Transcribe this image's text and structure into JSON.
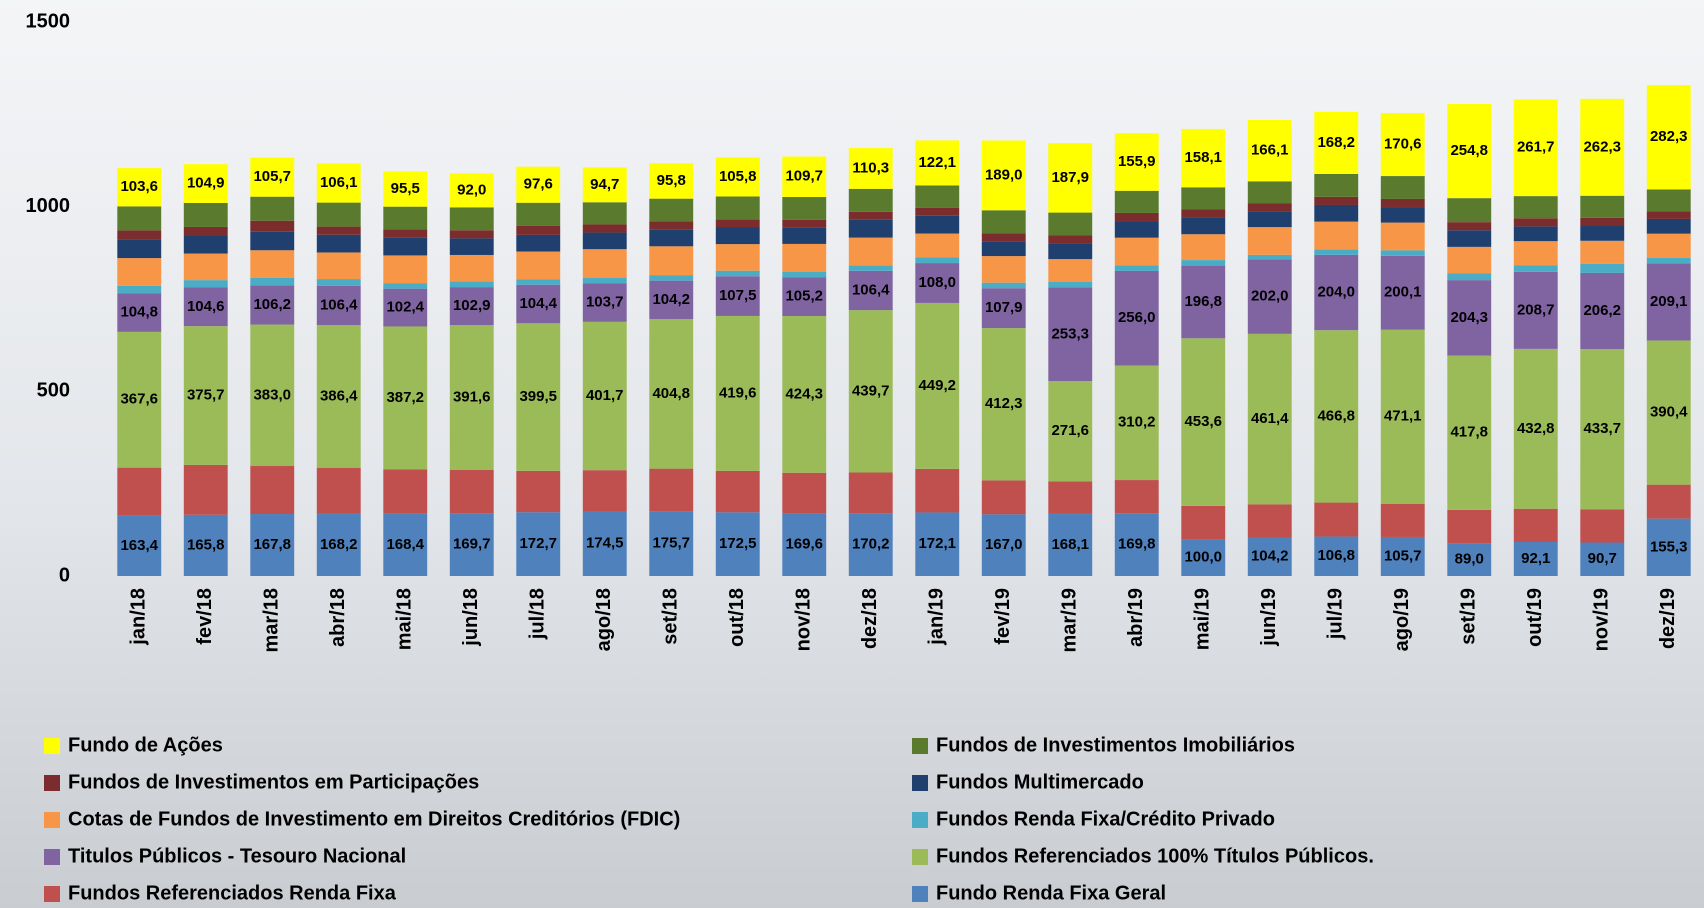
{
  "chart_data": {
    "type": "bar",
    "stacked": true,
    "categories": [
      "jan/18",
      "fev/18",
      "mar/18",
      "abr/18",
      "mai/18",
      "jun/18",
      "jul/18",
      "ago/18",
      "set/18",
      "out/18",
      "nov/18",
      "dez/18",
      "jan/19",
      "fev/19",
      "mar/19",
      "abr/19",
      "mai/19",
      "jun/19",
      "jul/19",
      "ago/19",
      "set/19",
      "out/19",
      "nov/19",
      "dez/19"
    ],
    "ylim": [
      0,
      1500
    ],
    "yticks": [
      0,
      500,
      1000,
      1500
    ],
    "grid": false,
    "series": [
      {
        "name": "Fundo Renda Fixa Geral",
        "color": "#4f81bd",
        "values": [
          163.4,
          165.8,
          167.8,
          168.2,
          168.4,
          169.7,
          172.7,
          174.5,
          175.7,
          172.5,
          169.6,
          170.2,
          172.1,
          167.0,
          168.1,
          169.8,
          100.0,
          104.2,
          106.8,
          105.7,
          89.0,
          92.1,
          90.7,
          155.3
        ],
        "value_labels": [
          "163,4",
          "165,8",
          "167,8",
          "168,2",
          "168,4",
          "169,7",
          "172,7",
          "174,5",
          "175,7",
          "172,5",
          "169,6",
          "170,2",
          "172,1",
          "167,0",
          "168,1",
          "169,8",
          "100,0",
          "104,2",
          "106,8",
          "105,7",
          "89,0",
          "92,1",
          "90,7",
          "155,3"
        ]
      },
      {
        "name": "Fundos Referenciados Renda Fixa",
        "color": "#c0504d",
        "values": [
          130,
          135,
          130,
          125,
          120,
          118,
          112,
          112,
          115,
          112,
          110,
          110,
          118,
          92,
          88,
          90,
          90,
          90,
          92,
          90,
          90,
          90,
          90,
          92
        ]
      },
      {
        "name": "Fundos Referenciados 100% Títulos Públicos.",
        "color": "#9bbb59",
        "values": [
          367.6,
          375.7,
          383.0,
          386.4,
          387.2,
          391.6,
          399.5,
          401.7,
          404.8,
          419.6,
          424.3,
          439.7,
          449.2,
          412.3,
          271.6,
          310.2,
          453.6,
          461.4,
          466.8,
          471.1,
          417.8,
          432.8,
          433.7,
          390.4
        ],
        "value_labels": [
          "367,6",
          "375,7",
          "383,0",
          "386,4",
          "387,2",
          "391,6",
          "399,5",
          "401,7",
          "404,8",
          "419,6",
          "424,3",
          "439,7",
          "449,2",
          "412,3",
          "271,6",
          "310,2",
          "453,6",
          "461,4",
          "466,8",
          "471,1",
          "417,8",
          "432,8",
          "433,7",
          "390,4"
        ]
      },
      {
        "name": "Titulos Públicos - Tesouro Nacional",
        "color": "#8064a2",
        "values": [
          104.8,
          104.6,
          106.2,
          106.4,
          102.4,
          102.9,
          104.4,
          103.7,
          104.2,
          107.5,
          105.2,
          106.4,
          108.0,
          107.9,
          253.3,
          256.0,
          196.8,
          202.0,
          204.0,
          200.1,
          204.3,
          208.7,
          206.2,
          209.1
        ],
        "value_labels": [
          "104,8",
          "104,6",
          "106,2",
          "106,4",
          "102,4",
          "102,9",
          "104,4",
          "103,7",
          "104,2",
          "107,5",
          "105,2",
          "106,4",
          "108,0",
          "107,9",
          "253,3",
          "256,0",
          "196,8",
          "202,0",
          "204,0",
          "200,1",
          "204,3",
          "208,7",
          "206,2",
          "209,1"
        ]
      },
      {
        "name": "Fundos Renda Fixa/Crédito Privado",
        "color": "#4bacc6",
        "values": [
          20,
          20,
          20,
          18,
          15,
          15,
          15,
          15,
          15,
          15,
          15,
          15,
          15,
          15,
          15,
          15,
          15,
          12,
          15,
          15,
          18,
          18,
          25,
          15
        ]
      },
      {
        "name": "Cotas de Fundos de Investimento em Direitos Creditórios (FDIC)",
        "color": "#f79646",
        "values": [
          75,
          72,
          75,
          72,
          75,
          72,
          75,
          78,
          78,
          72,
          75,
          75,
          65,
          72,
          62,
          75,
          70,
          75,
          75,
          75,
          72,
          65,
          62,
          65
        ]
      },
      {
        "name": "Fundos Multimercado",
        "color": "#1f3f6e",
        "values": [
          50,
          50,
          50,
          48,
          48,
          45,
          45,
          45,
          45,
          45,
          45,
          48,
          48,
          40,
          42,
          45,
          45,
          42,
          45,
          42,
          45,
          40,
          40,
          40
        ]
      },
      {
        "name": "Fundos de Investimentos em Participações",
        "color": "#7b2c2c",
        "values": [
          25,
          22,
          30,
          22,
          22,
          22,
          25,
          22,
          22,
          22,
          20,
          22,
          22,
          22,
          22,
          22,
          22,
          22,
          22,
          22,
          22,
          22,
          22,
          20
        ]
      },
      {
        "name": "Fundos de Investimentos Imobiliários",
        "color": "#5a7a2e",
        "values": [
          65,
          65,
          65,
          65,
          62,
          62,
          62,
          60,
          62,
          62,
          62,
          62,
          60,
          62,
          62,
          60,
          60,
          60,
          62,
          62,
          65,
          60,
          60,
          60
        ]
      },
      {
        "name": "Fundo de Ações",
        "color": "#ffff00",
        "values": [
          103.6,
          104.9,
          105.7,
          106.1,
          95.5,
          92.0,
          97.6,
          94.7,
          95.8,
          105.8,
          109.7,
          110.3,
          122.1,
          189.0,
          187.9,
          155.9,
          158.1,
          166.1,
          168.2,
          170.6,
          254.8,
          261.7,
          262.3,
          282.3
        ],
        "value_labels": [
          "103,6",
          "104,9",
          "105,7",
          "106,1",
          "95,5",
          "92,0",
          "97,6",
          "94,7",
          "95,8",
          "105,8",
          "109,7",
          "110,3",
          "122,1",
          "189,0",
          "187,9",
          "155,9",
          "158,1",
          "166,1",
          "168,2",
          "170,6",
          "254,8",
          "261,7",
          "262,3",
          "282,3"
        ]
      }
    ]
  }
}
